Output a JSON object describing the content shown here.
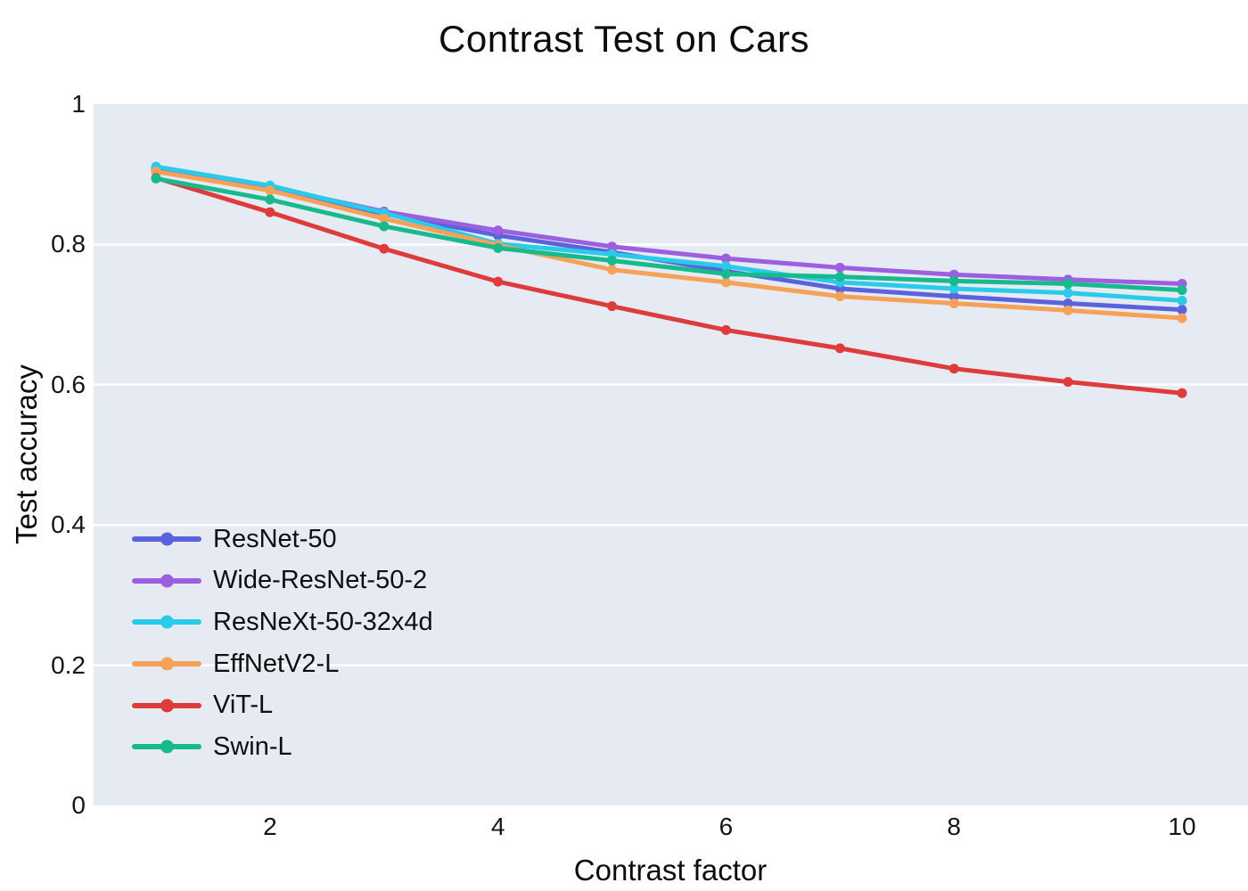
{
  "title": "Contrast Test on Cars",
  "axes": {
    "x": {
      "label": "Contrast factor",
      "ticks": [
        {
          "value": 2,
          "label": "2"
        },
        {
          "value": 4,
          "label": "4"
        },
        {
          "value": 6,
          "label": "6"
        },
        {
          "value": 8,
          "label": "8"
        },
        {
          "value": 10,
          "label": "10"
        }
      ]
    },
    "y": {
      "label": "Test accuracy",
      "ticks": [
        {
          "value": 0,
          "label": "0"
        },
        {
          "value": 0.2,
          "label": "0.2"
        },
        {
          "value": 0.4,
          "label": "0.4"
        },
        {
          "value": 0.6,
          "label": "0.6"
        },
        {
          "value": 0.8,
          "label": "0.8"
        },
        {
          "value": 1,
          "label": "1"
        }
      ]
    }
  },
  "style": {
    "plot_background": "#E6EBF3",
    "gridline_color": "#FFFFFF",
    "line_width": 5,
    "marker_radius": 5.5
  },
  "chart_data": {
    "type": "line",
    "title": "Contrast Test on Cars",
    "xlabel": "Contrast factor",
    "ylabel": "Test accuracy",
    "x": [
      1,
      2,
      3,
      4,
      5,
      6,
      7,
      8,
      9,
      10
    ],
    "series": [
      {
        "name": "ResNet-50",
        "color": "#5B63DC",
        "values": [
          0.906,
          0.879,
          0.844,
          0.813,
          0.789,
          0.762,
          0.737,
          0.726,
          0.716,
          0.707
        ]
      },
      {
        "name": "Wide-ResNet-50-2",
        "color": "#9C5FE0",
        "values": [
          0.908,
          0.882,
          0.847,
          0.82,
          0.797,
          0.78,
          0.767,
          0.757,
          0.75,
          0.744
        ]
      },
      {
        "name": "ResNeXt-50-32x4d",
        "color": "#29CBE8",
        "values": [
          0.911,
          0.884,
          0.845,
          0.801,
          0.786,
          0.769,
          0.746,
          0.737,
          0.731,
          0.72
        ]
      },
      {
        "name": "EffNetV2-L",
        "color": "#F5A158",
        "values": [
          0.904,
          0.877,
          0.837,
          0.799,
          0.764,
          0.746,
          0.726,
          0.716,
          0.706,
          0.695
        ]
      },
      {
        "name": "ViT-L",
        "color": "#DE3C3C",
        "values": [
          0.895,
          0.846,
          0.794,
          0.747,
          0.712,
          0.678,
          0.652,
          0.623,
          0.604,
          0.588
        ]
      },
      {
        "name": "Swin-L",
        "color": "#16BA8C",
        "values": [
          0.894,
          0.864,
          0.826,
          0.795,
          0.777,
          0.758,
          0.754,
          0.748,
          0.744,
          0.735
        ]
      }
    ],
    "xlim": [
      0.45,
      10.55
    ],
    "ylim": [
      0,
      1
    ],
    "xticks": [
      2,
      4,
      6,
      8,
      10
    ],
    "yticks": [
      0,
      0.2,
      0.4,
      0.6,
      0.8,
      1
    ],
    "grid": "horizontal white gridlines on light blue-gray background",
    "markers": true,
    "legend_position": "inside lower-left, no frame"
  }
}
